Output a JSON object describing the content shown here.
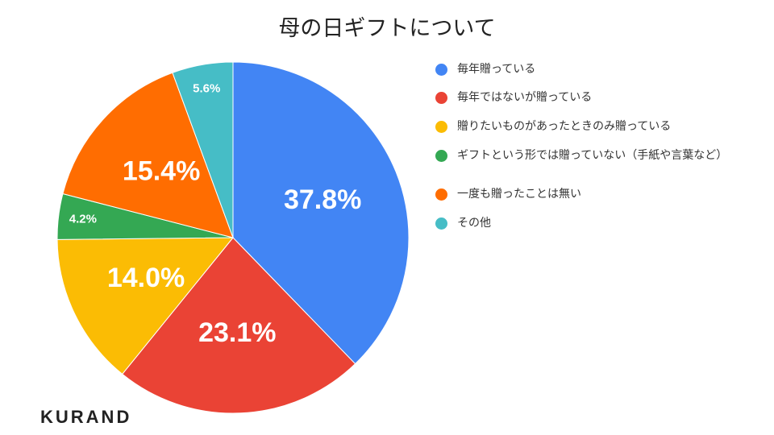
{
  "chart_data": {
    "type": "pie",
    "title": "母の日ギフトについて",
    "categories": [
      "毎年贈っている",
      "毎年ではないが贈っている",
      "贈りたいものがあったときのみ贈っている",
      "ギフトという形では贈っていない（手紙や言葉など）",
      "一度も贈ったことは無い",
      "その他"
    ],
    "values": [
      37.8,
      23.1,
      14.0,
      4.2,
      15.4,
      5.6
    ],
    "value_labels": [
      "37.8%",
      "23.1%",
      "14.0%",
      "4.2%",
      "15.4%",
      "5.6%"
    ],
    "colors": [
      "#4285f4",
      "#ea4335",
      "#fbbc04",
      "#34a853",
      "#ff6d01",
      "#46bdc6"
    ],
    "legend": "right"
  },
  "logo": "KURAND"
}
